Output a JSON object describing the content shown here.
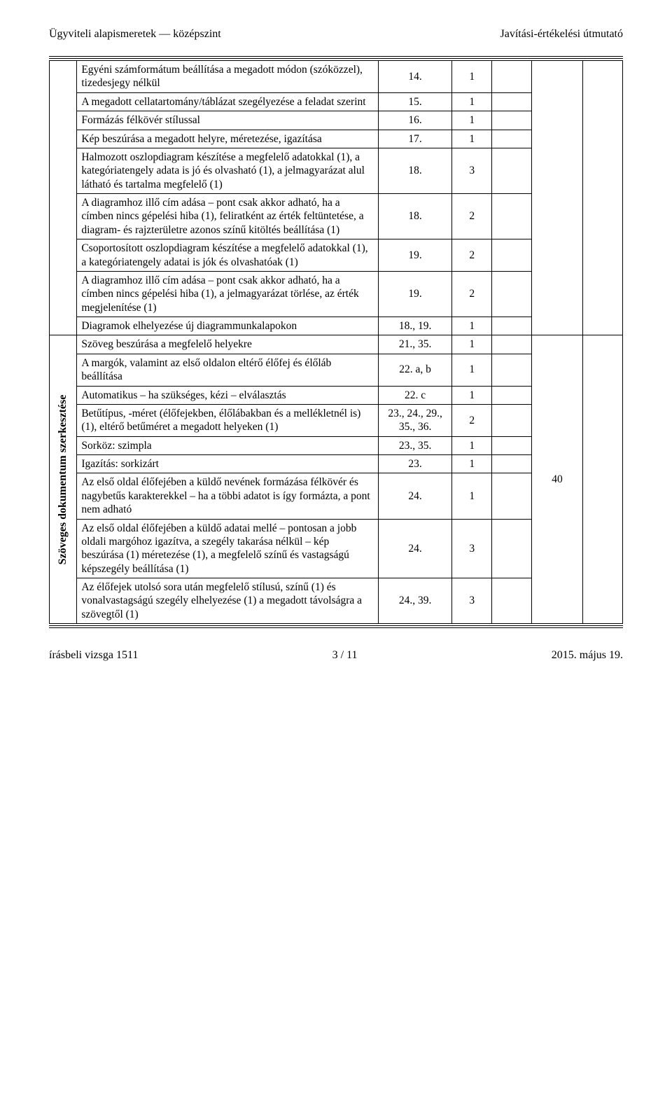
{
  "header": {
    "left": "Ügyviteli alapismeretek — középszint",
    "right": "Javítási-értékelési útmutató"
  },
  "section1": {
    "rotated": "",
    "rows": [
      {
        "desc": "Egyéni számformátum beállítása a megadott módon (szóközzel), tizedesjegy nélkül",
        "c2": "14.",
        "c3": "1"
      },
      {
        "desc": "A megadott cellatartomány/táblázat szegélyezése a feladat szerint",
        "c2": "15.",
        "c3": "1"
      },
      {
        "desc": "Formázás félkövér stílussal",
        "c2": "16.",
        "c3": "1"
      },
      {
        "desc": "Kép beszúrása a megadott helyre, méretezése, igazítása",
        "c2": "17.",
        "c3": "1"
      },
      {
        "desc": "Halmozott oszlopdiagram készítése a megfelelő adatokkal (1), a kategóriatengely adata is jó és olvasható (1), a jelmagyarázat alul látható és tartalma megfelelő (1)",
        "c2": "18.",
        "c3": "3"
      },
      {
        "desc": "A diagramhoz illő cím adása – pont csak akkor adható, ha a címben nincs gépelési hiba (1), feliratként az érték feltüntetése, a diagram- és rajzterületre azonos színű kitöltés beállítása (1)",
        "c2": "18.",
        "c3": "2"
      },
      {
        "desc": "Csoportosított oszlopdiagram készítése a megfelelő adatokkal (1), a kategóriatengely adatai is jók és olvashatóak (1)",
        "c2": "19.",
        "c3": "2"
      },
      {
        "desc": "A diagramhoz illő cím adása – pont csak akkor adható, ha a címben nincs gépelési hiba (1), a jelmagyarázat törlése, az érték megjelenítése (1)",
        "c2": "19.",
        "c3": "2"
      },
      {
        "desc": "Diagramok elhelyezése új diagrammunkalapokon",
        "c2": "18., 19.",
        "c3": "1"
      }
    ]
  },
  "section2": {
    "rotated": "Szöveges dokumentum szerkesztése",
    "total": "40",
    "rows": [
      {
        "desc": "Szöveg beszúrása a megfelelő helyekre",
        "c2": "21., 35.",
        "c3": "1"
      },
      {
        "desc": "A margók, valamint az első oldalon eltérő élőfej és élőláb beállítása",
        "c2": "22. a, b",
        "c3": "1"
      },
      {
        "desc": "Automatikus – ha szükséges, kézi – elválasztás",
        "c2": "22. c",
        "c3": "1"
      },
      {
        "desc": "Betűtípus, -méret (élőfejekben, élőlábakban és a mellékletnél is) (1), eltérő betűméret a megadott helyeken (1)",
        "c2": "23., 24., 29., 35., 36.",
        "c3": "2"
      },
      {
        "desc": "Sorköz: szimpla",
        "c2": "23., 35.",
        "c3": "1"
      },
      {
        "desc": "Igazítás: sorkizárt",
        "c2": "23.",
        "c3": "1"
      },
      {
        "desc": "Az első oldal élőfejében a küldő nevének formázása félkövér és nagybetűs karakterekkel – ha a többi adatot is így formázta, a pont nem adható",
        "c2": "24.",
        "c3": "1"
      },
      {
        "desc": "Az első oldal élőfejében a küldő adatai mellé – pontosan a jobb oldali margóhoz igazítva, a szegély takarása nélkül – kép beszúrása (1) méretezése (1), a megfelelő színű és vastagságú képszegély beállítása (1)",
        "c2": "24.",
        "c3": "3"
      },
      {
        "desc": "Az élőfejek utolsó sora után megfelelő stílusú, színű (1) és vonalvastagságú szegély elhelyezése (1) a megadott távolságra a szövegtől (1)",
        "c2": "24., 39.",
        "c3": "3"
      }
    ]
  },
  "footer": {
    "left": "írásbeli vizsga 1511",
    "center": "3 / 11",
    "right": "2015. május 19."
  }
}
